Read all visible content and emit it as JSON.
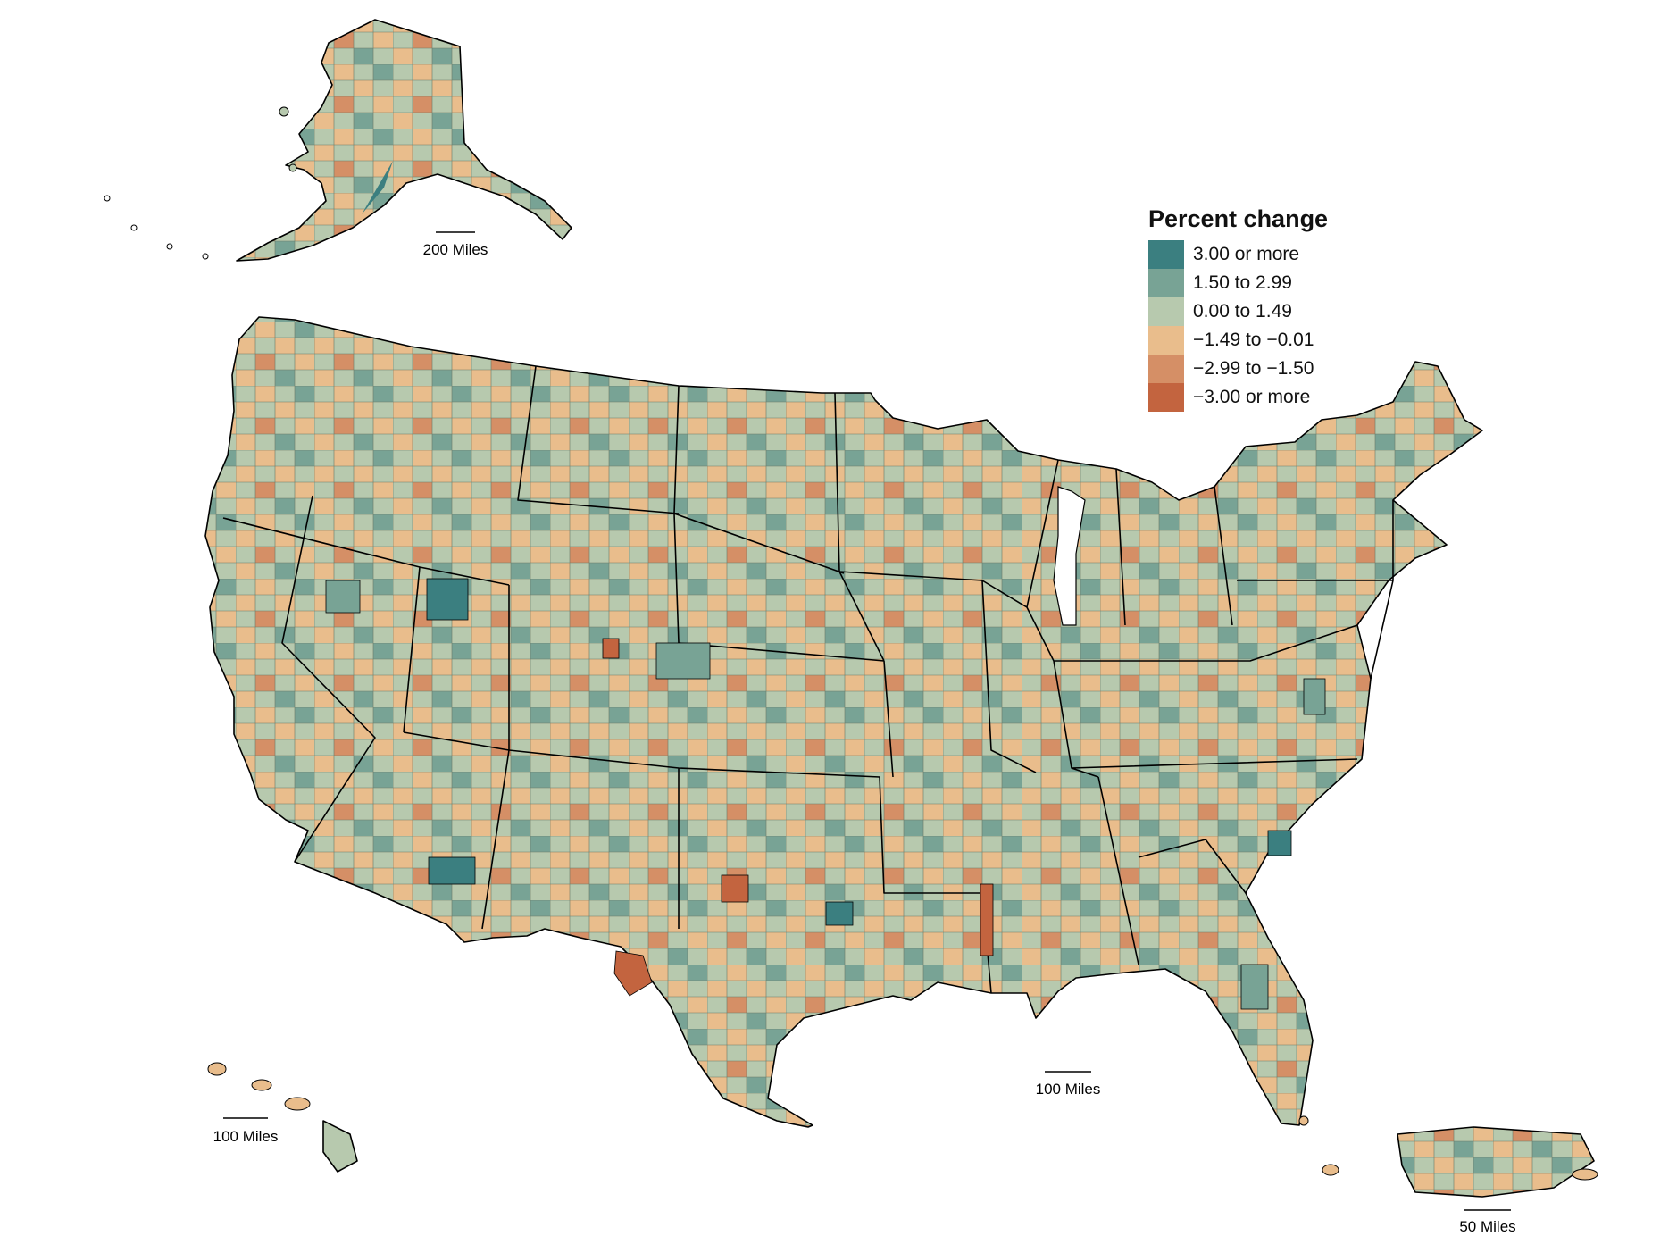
{
  "legend": {
    "title": "Percent change",
    "classes": [
      {
        "label": "3.00 or more",
        "color": "#3b7f80"
      },
      {
        "label": "1.50 to 2.99",
        "color": "#78a395"
      },
      {
        "label": "0.00 to 1.49",
        "color": "#b7c9ae"
      },
      {
        "label": "−1.49 to −0.01",
        "color": "#e9bd8c"
      },
      {
        "label": "−2.99 to −1.50",
        "color": "#d58f66"
      },
      {
        "label": "−3.00 or more",
        "color": "#c3643f"
      }
    ]
  },
  "scale_bars": {
    "alaska": "200 Miles",
    "conus": "100 Miles",
    "hawaii": "100 Miles",
    "puerto_rico": "50 Miles"
  }
}
